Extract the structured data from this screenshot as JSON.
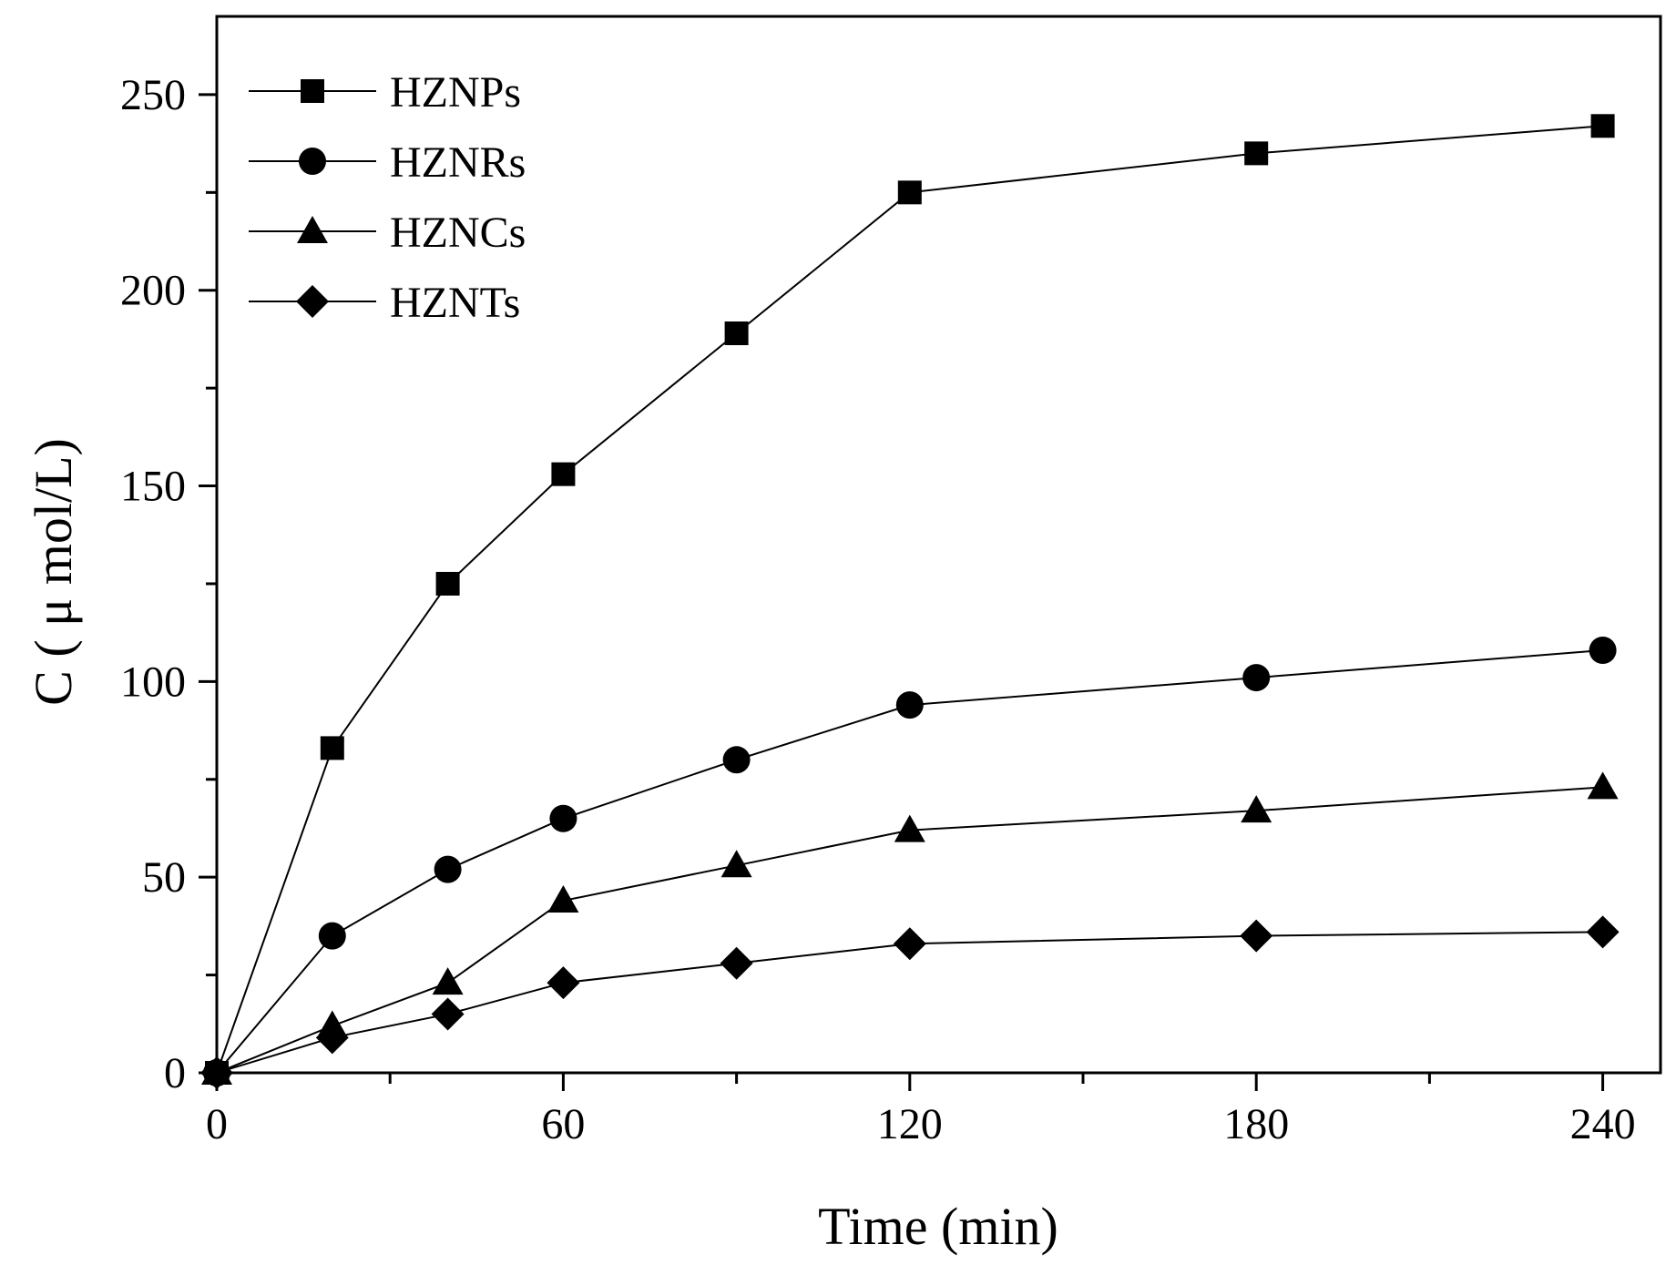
{
  "chart_data": {
    "type": "line",
    "title": "",
    "xlabel": "Time (min)",
    "ylabel": "C ( μ mol/L)",
    "xlim": [
      0,
      250
    ],
    "ylim": [
      0,
      270
    ],
    "xticks": [
      0,
      60,
      120,
      180,
      240
    ],
    "yticks": [
      0,
      50,
      100,
      150,
      200,
      250
    ],
    "x_minor_step": 30,
    "y_minor_step": 25,
    "grid": false,
    "legend_position": "top-left",
    "x": [
      0,
      20,
      40,
      60,
      90,
      120,
      180,
      240
    ],
    "series": [
      {
        "name": "HZNPs",
        "marker": "square",
        "values": [
          0,
          83,
          125,
          153,
          189,
          225,
          235,
          242
        ]
      },
      {
        "name": "HZNRs",
        "marker": "circle",
        "values": [
          0,
          35,
          52,
          65,
          80,
          94,
          101,
          108
        ]
      },
      {
        "name": "HZNCs",
        "marker": "triangle",
        "values": [
          0,
          12,
          23,
          44,
          53,
          62,
          67,
          73
        ]
      },
      {
        "name": "HZNTs",
        "marker": "diamond",
        "values": [
          0,
          9,
          15,
          23,
          28,
          33,
          35,
          36
        ]
      }
    ],
    "colors": {
      "line": "#000000",
      "marker": "#000000",
      "background": "#ffffff"
    }
  }
}
